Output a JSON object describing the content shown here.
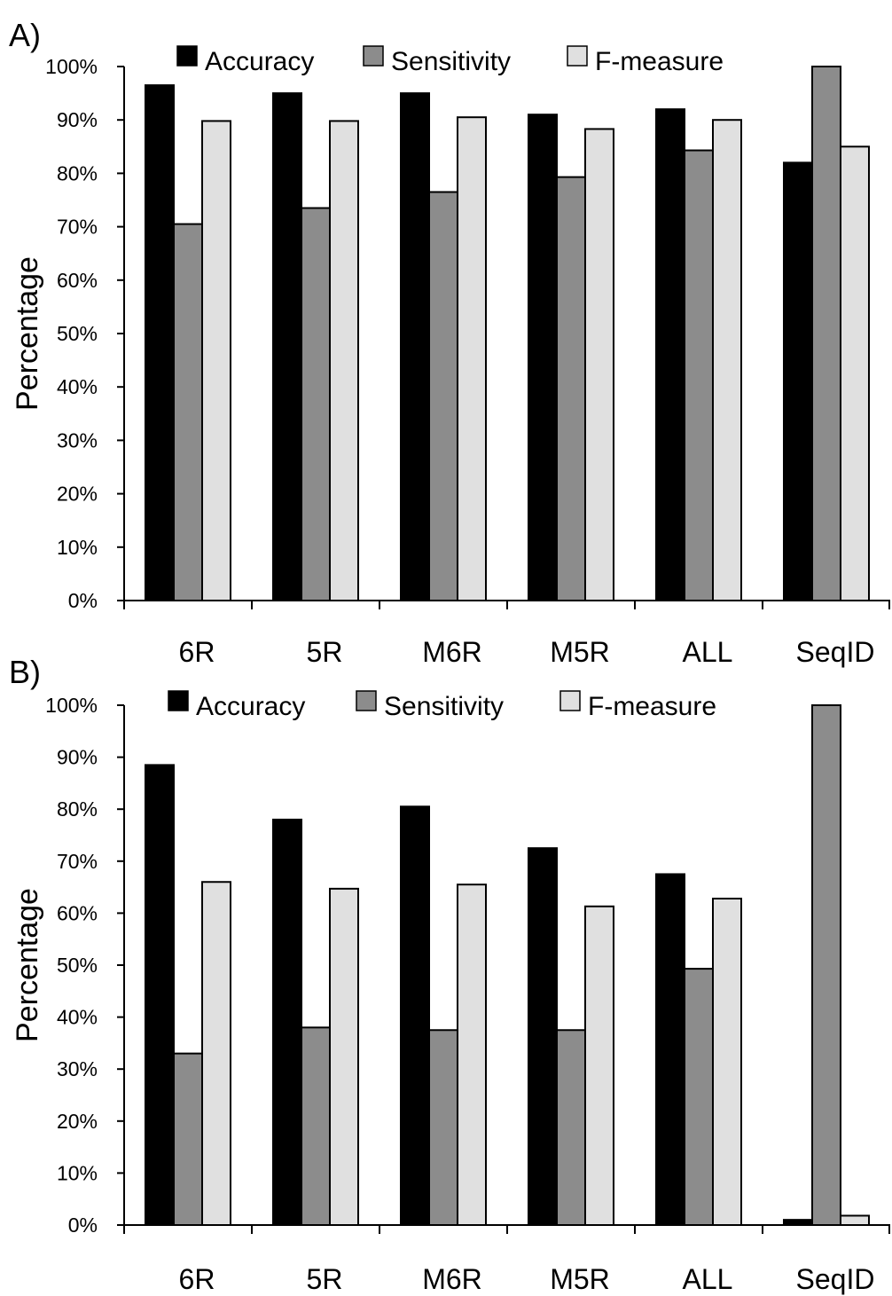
{
  "chart_data": [
    {
      "type": "bar",
      "panel_label": "A)",
      "title": "",
      "xlabel": "",
      "ylabel": "Percentage",
      "ylim": [
        0,
        100
      ],
      "y_ticks": [
        "0%",
        "10%",
        "20%",
        "30%",
        "40%",
        "50%",
        "60%",
        "70%",
        "80%",
        "90%",
        "100%"
      ],
      "categories": [
        "6R",
        "5R",
        "M6R",
        "M5R",
        "ALL",
        "SeqID"
      ],
      "legend_position": "top",
      "grid": false,
      "series": [
        {
          "name": "Accuracy",
          "color": "#000000",
          "values": [
            96.5,
            95,
            95,
            91,
            92,
            82
          ]
        },
        {
          "name": "Sensitivity",
          "color": "#8c8c8c",
          "values": [
            70.5,
            73.5,
            76.5,
            79.3,
            84.3,
            100
          ]
        },
        {
          "name": "F-measure",
          "color": "#e0e0e0",
          "values": [
            89.8,
            89.8,
            90.5,
            88.3,
            90,
            85
          ]
        }
      ]
    },
    {
      "type": "bar",
      "panel_label": "B)",
      "title": "",
      "xlabel": "",
      "ylabel": "Percentage",
      "ylim": [
        0,
        100
      ],
      "y_ticks": [
        "0%",
        "10%",
        "20%",
        "30%",
        "40%",
        "50%",
        "60%",
        "70%",
        "80%",
        "90%",
        "100%"
      ],
      "categories": [
        "6R",
        "5R",
        "M6R",
        "M5R",
        "ALL",
        "SeqID"
      ],
      "legend_position": "top",
      "grid": false,
      "series": [
        {
          "name": "Accuracy",
          "color": "#000000",
          "values": [
            88.5,
            78,
            80.5,
            72.5,
            67.5,
            1
          ]
        },
        {
          "name": "Sensitivity",
          "color": "#8c8c8c",
          "values": [
            33,
            38,
            37.5,
            37.5,
            49.3,
            100
          ]
        },
        {
          "name": "F-measure",
          "color": "#e0e0e0",
          "values": [
            66,
            64.7,
            65.5,
            61.3,
            62.8,
            1.8
          ]
        }
      ]
    }
  ]
}
